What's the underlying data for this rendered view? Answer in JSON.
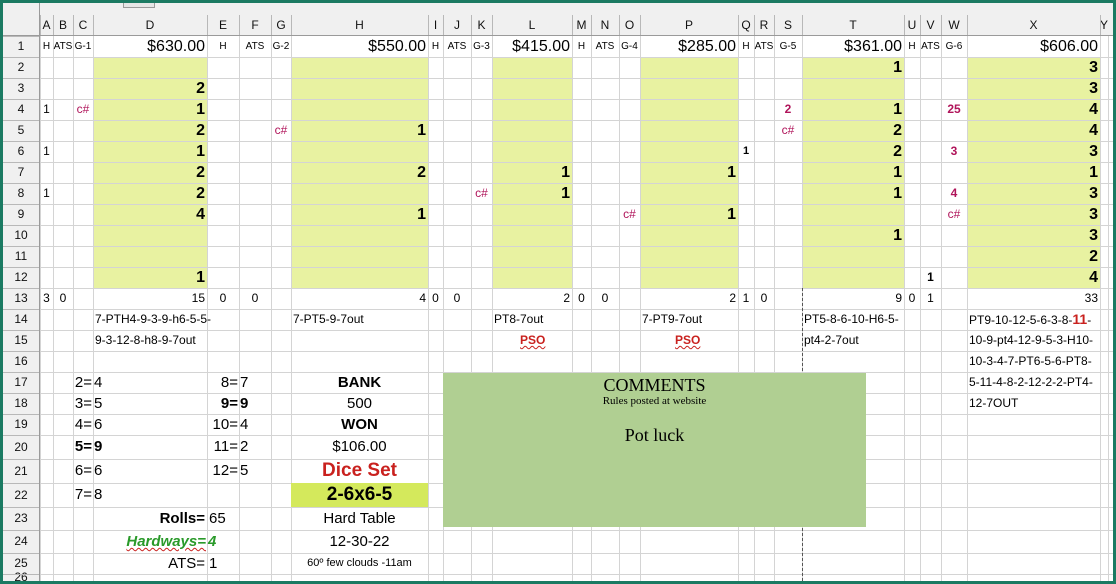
{
  "columns": [
    "A",
    "B",
    "C",
    "D",
    "E",
    "F",
    "G",
    "H",
    "I",
    "J",
    "K",
    "L",
    "M",
    "N",
    "O",
    "P",
    "Q",
    "R",
    "S",
    "T",
    "U",
    "V",
    "W",
    "X",
    "Y"
  ],
  "rows": [
    "1",
    "2",
    "3",
    "4",
    "5",
    "6",
    "7",
    "8",
    "9",
    "10",
    "11",
    "12",
    "13",
    "14",
    "15",
    "16",
    "17",
    "18",
    "19",
    "20",
    "21",
    "22",
    "23",
    "24",
    "25",
    "26"
  ],
  "colors": {
    "fill_green": "#e8f2a1",
    "comments_bg": "#b0cf92",
    "accent_red": "#c9211e",
    "crimson": "#b0145a",
    "green_text": "#2a9a2a",
    "dice_bg": "#d4e95c",
    "frame": "#1b7a62"
  },
  "cells": [
    {
      "text": "H",
      "col": "A",
      "row": 1,
      "size": 10,
      "align": "c"
    },
    {
      "text": "ATS",
      "col": "B",
      "row": 1,
      "size": 10,
      "align": "c"
    },
    {
      "text": "G-1",
      "col": "C",
      "row": 1,
      "size": 10,
      "align": "c"
    },
    {
      "text": "$630.00",
      "col": "D",
      "row": 1,
      "size": 16,
      "align": "r"
    },
    {
      "text": "H",
      "col": "E",
      "row": 1,
      "size": 10,
      "align": "c"
    },
    {
      "text": "ATS",
      "col": "F",
      "row": 1,
      "size": 10,
      "align": "c"
    },
    {
      "text": "G-2",
      "col": "G",
      "row": 1,
      "size": 10,
      "align": "c"
    },
    {
      "text": "$550.00",
      "col": "H",
      "row": 1,
      "size": 16,
      "align": "r"
    },
    {
      "text": "H",
      "col": "I",
      "row": 1,
      "size": 10,
      "align": "c"
    },
    {
      "text": "ATS",
      "col": "J",
      "row": 1,
      "size": 10,
      "align": "c"
    },
    {
      "text": "G-3",
      "col": "K",
      "row": 1,
      "size": 10,
      "align": "c"
    },
    {
      "text": "$415.00",
      "col": "L",
      "row": 1,
      "size": 16,
      "align": "r"
    },
    {
      "text": "H",
      "col": "M",
      "row": 1,
      "size": 10,
      "align": "c"
    },
    {
      "text": "ATS",
      "col": "N",
      "row": 1,
      "size": 10,
      "align": "c"
    },
    {
      "text": "G-4",
      "col": "O",
      "row": 1,
      "size": 10,
      "align": "c"
    },
    {
      "text": "$285.00",
      "col": "P",
      "row": 1,
      "size": 16,
      "align": "r"
    },
    {
      "text": "H",
      "col": "Q",
      "row": 1,
      "size": 10,
      "align": "c"
    },
    {
      "text": "ATS",
      "col": "R",
      "row": 1,
      "size": 10,
      "align": "c"
    },
    {
      "text": "G-5",
      "col": "S",
      "row": 1,
      "size": 10,
      "align": "c"
    },
    {
      "text": "$361.00",
      "col": "T",
      "row": 1,
      "size": 16,
      "align": "r"
    },
    {
      "text": "H",
      "col": "U",
      "row": 1,
      "size": 10,
      "align": "c"
    },
    {
      "text": "ATS",
      "col": "V",
      "row": 1,
      "size": 10,
      "align": "c"
    },
    {
      "text": "G-6",
      "col": "W",
      "row": 1,
      "size": 10,
      "align": "c"
    },
    {
      "text": "$606.00",
      "col": "X",
      "row": 1,
      "size": 16,
      "align": "r"
    },
    {
      "text": "2",
      "col": "D",
      "row": 3,
      "size": 16,
      "bold": true,
      "align": "r"
    },
    {
      "text": "1",
      "col": "D",
      "row": 4,
      "size": 16,
      "bold": true,
      "align": "r"
    },
    {
      "text": "2",
      "col": "D",
      "row": 5,
      "size": 16,
      "bold": true,
      "align": "r"
    },
    {
      "text": "1",
      "col": "D",
      "row": 6,
      "size": 16,
      "bold": true,
      "align": "r"
    },
    {
      "text": "2",
      "col": "D",
      "row": 7,
      "size": 16,
      "bold": true,
      "align": "r"
    },
    {
      "text": "2",
      "col": "D",
      "row": 8,
      "size": 16,
      "bold": true,
      "align": "r"
    },
    {
      "text": "4",
      "col": "D",
      "row": 9,
      "size": 16,
      "bold": true,
      "align": "r"
    },
    {
      "text": "1",
      "col": "D",
      "row": 12,
      "size": 16,
      "bold": true,
      "align": "r"
    },
    {
      "text": "1",
      "col": "A",
      "row": 4,
      "size": 12,
      "align": "c"
    },
    {
      "text": "1",
      "col": "A",
      "row": 6,
      "size": 12,
      "align": "c"
    },
    {
      "text": "1",
      "col": "A",
      "row": 8,
      "size": 12,
      "align": "c"
    },
    {
      "text": "c#",
      "col": "C",
      "row": 4,
      "size": 12,
      "color": "crimson",
      "align": "c"
    },
    {
      "text": "c#",
      "col": "G",
      "row": 5,
      "size": 12,
      "color": "crimson",
      "align": "c"
    },
    {
      "text": "1",
      "col": "H",
      "row": 5,
      "size": 16,
      "bold": true,
      "align": "r"
    },
    {
      "text": "2",
      "col": "H",
      "row": 7,
      "size": 16,
      "bold": true,
      "align": "r"
    },
    {
      "text": "1",
      "col": "H",
      "row": 9,
      "size": 16,
      "bold": true,
      "align": "r"
    },
    {
      "text": "c#",
      "col": "K",
      "row": 8,
      "size": 12,
      "color": "crimson",
      "align": "c"
    },
    {
      "text": "1",
      "col": "L",
      "row": 7,
      "size": 16,
      "bold": true,
      "align": "r"
    },
    {
      "text": "1",
      "col": "L",
      "row": 8,
      "size": 16,
      "bold": true,
      "align": "r"
    },
    {
      "text": "c#",
      "col": "O",
      "row": 9,
      "size": 12,
      "color": "crimson",
      "align": "c"
    },
    {
      "text": "1",
      "col": "P",
      "row": 7,
      "size": 16,
      "bold": true,
      "align": "r"
    },
    {
      "text": "1",
      "col": "P",
      "row": 9,
      "size": 16,
      "bold": true,
      "align": "r"
    },
    {
      "text": "1",
      "col": "Q",
      "row": 6,
      "size": 11,
      "bold": true,
      "align": "c"
    },
    {
      "text": "2",
      "col": "S",
      "row": 4,
      "size": 12,
      "bold": true,
      "color": "crimson",
      "align": "c"
    },
    {
      "text": "c#",
      "col": "S",
      "row": 5,
      "size": 12,
      "color": "crimson",
      "align": "c"
    },
    {
      "text": "1",
      "col": "T",
      "row": 2,
      "size": 16,
      "bold": true,
      "align": "r"
    },
    {
      "text": "1",
      "col": "T",
      "row": 4,
      "size": 16,
      "bold": true,
      "align": "r"
    },
    {
      "text": "2",
      "col": "T",
      "row": 5,
      "size": 16,
      "bold": true,
      "align": "r"
    },
    {
      "text": "2",
      "col": "T",
      "row": 6,
      "size": 16,
      "bold": true,
      "align": "r"
    },
    {
      "text": "1",
      "col": "T",
      "row": 7,
      "size": 16,
      "bold": true,
      "align": "r"
    },
    {
      "text": "1",
      "col": "T",
      "row": 8,
      "size": 16,
      "bold": true,
      "align": "r"
    },
    {
      "text": "1",
      "col": "T",
      "row": 10,
      "size": 16,
      "bold": true,
      "align": "r"
    },
    {
      "text": "25",
      "col": "W",
      "row": 4,
      "size": 12,
      "bold": true,
      "color": "crimson",
      "align": "c"
    },
    {
      "text": "3",
      "col": "W",
      "row": 6,
      "size": 12,
      "bold": true,
      "color": "crimson",
      "align": "c"
    },
    {
      "text": "4",
      "col": "W",
      "row": 8,
      "size": 12,
      "bold": true,
      "color": "crimson",
      "align": "c"
    },
    {
      "text": "c#",
      "col": "W",
      "row": 9,
      "size": 12,
      "color": "crimson",
      "align": "c"
    },
    {
      "text": "1",
      "col": "V",
      "row": 12,
      "size": 12,
      "bold": true,
      "align": "c"
    },
    {
      "text": "3",
      "col": "X",
      "row": 2,
      "size": 16,
      "bold": true,
      "align": "r"
    },
    {
      "text": "3",
      "col": "X",
      "row": 3,
      "size": 16,
      "bold": true,
      "align": "r"
    },
    {
      "text": "4",
      "col": "X",
      "row": 4,
      "size": 16,
      "bold": true,
      "align": "r"
    },
    {
      "text": "4",
      "col": "X",
      "row": 5,
      "size": 16,
      "bold": true,
      "align": "r"
    },
    {
      "text": "3",
      "col": "X",
      "row": 6,
      "size": 16,
      "bold": true,
      "align": "r"
    },
    {
      "text": "1",
      "col": "X",
      "row": 7,
      "size": 16,
      "bold": true,
      "align": "r"
    },
    {
      "text": "3",
      "col": "X",
      "row": 8,
      "size": 16,
      "bold": true,
      "align": "r"
    },
    {
      "text": "3",
      "col": "X",
      "row": 9,
      "size": 16,
      "bold": true,
      "align": "r"
    },
    {
      "text": "3",
      "col": "X",
      "row": 10,
      "size": 16,
      "bold": true,
      "align": "r"
    },
    {
      "text": "2",
      "col": "X",
      "row": 11,
      "size": 16,
      "bold": true,
      "align": "r"
    },
    {
      "text": "4",
      "col": "X",
      "row": 12,
      "size": 16,
      "bold": true,
      "align": "r"
    },
    {
      "text": "3",
      "col": "A",
      "row": 13,
      "size": 12,
      "align": "c"
    },
    {
      "text": "0",
      "col": "B",
      "row": 13,
      "size": 12,
      "align": "c"
    },
    {
      "text": "15",
      "col": "D",
      "row": 13,
      "size": 12,
      "align": "r"
    },
    {
      "text": "0",
      "col": "E",
      "row": 13,
      "size": 12,
      "align": "c"
    },
    {
      "text": "0",
      "col": "F",
      "row": 13,
      "size": 12,
      "align": "c"
    },
    {
      "text": "4",
      "col": "H",
      "row": 13,
      "size": 12,
      "align": "r"
    },
    {
      "text": "0",
      "col": "I",
      "row": 13,
      "size": 12,
      "align": "c"
    },
    {
      "text": "0",
      "col": "J",
      "row": 13,
      "size": 12,
      "align": "c"
    },
    {
      "text": "2",
      "col": "L",
      "row": 13,
      "size": 12,
      "align": "r"
    },
    {
      "text": "0",
      "col": "M",
      "row": 13,
      "size": 12,
      "align": "c"
    },
    {
      "text": "0",
      "col": "N",
      "row": 13,
      "size": 12,
      "align": "c"
    },
    {
      "text": "2",
      "col": "P",
      "row": 13,
      "size": 12,
      "align": "r"
    },
    {
      "text": "1",
      "col": "Q",
      "row": 13,
      "size": 12,
      "align": "c"
    },
    {
      "text": "0",
      "col": "R",
      "row": 13,
      "size": 12,
      "align": "c"
    },
    {
      "text": "9",
      "col": "T",
      "row": 13,
      "size": 12,
      "align": "r"
    },
    {
      "text": "0",
      "col": "U",
      "row": 13,
      "size": 12,
      "align": "c"
    },
    {
      "text": "1",
      "col": "V",
      "row": 13,
      "size": 12,
      "align": "c"
    },
    {
      "text": "33",
      "col": "X",
      "row": 13,
      "size": 12,
      "align": "r"
    },
    {
      "text": "7-PTH4-9-3-9-h6-5-5-",
      "col": "D",
      "row": 14,
      "size": 12,
      "align": "l"
    },
    {
      "text": "9-3-12-8-h8-9-7out",
      "col": "D",
      "row": 15,
      "size": 12,
      "align": "l"
    },
    {
      "text": "7-PT5-9-7out",
      "col": "H",
      "row": 14,
      "size": 12,
      "align": "l"
    },
    {
      "text": "PT8-7out",
      "col": "L",
      "row": 14,
      "size": 12,
      "align": "l"
    },
    {
      "text": "PSO",
      "col": "L",
      "row": 15,
      "size": 12,
      "bold": true,
      "color": "accent_red",
      "underline": true,
      "align": "l",
      "offset": 26
    },
    {
      "text": "7-PT9-7out",
      "col": "P",
      "row": 14,
      "size": 12,
      "align": "l"
    },
    {
      "text": "PSO",
      "col": "P",
      "row": 15,
      "size": 12,
      "bold": true,
      "color": "accent_red",
      "underline": true,
      "align": "l",
      "offset": 33
    },
    {
      "text": "PT5-8-6-10-H6-5-",
      "col": "T",
      "row": 14,
      "size": 12,
      "align": "l"
    },
    {
      "text": "pt4-2-7out",
      "col": "T",
      "row": 15,
      "size": 12,
      "align": "l"
    },
    {
      "text": "10-9-pt4-12-9-5-3-H10-",
      "col": "X",
      "row": 15,
      "size": 12,
      "align": "l"
    },
    {
      "text": "10-3-4-7-PT6-5-6-PT8-",
      "col": "X",
      "row": 16,
      "size": 12,
      "align": "l"
    },
    {
      "text": "5-11-4-8-2-12-2-2-PT4-",
      "col": "X",
      "row": 17,
      "size": 12,
      "align": "l"
    },
    {
      "text": "12-7OUT",
      "col": "X",
      "row": 18,
      "size": 12,
      "align": "l"
    },
    {
      "text": "BANK",
      "col": "H",
      "row": 17,
      "size": 15,
      "bold": true,
      "align": "c"
    },
    {
      "text": "500",
      "col": "H",
      "row": 18,
      "size": 15,
      "align": "c"
    },
    {
      "text": "WON",
      "col": "H",
      "row": 19,
      "size": 15,
      "bold": true,
      "align": "c"
    },
    {
      "text": "$106.00",
      "col": "H",
      "row": 20,
      "size": 15,
      "align": "c"
    },
    {
      "text": "Dice Set",
      "col": "H",
      "row": 21,
      "size": 19,
      "bold": true,
      "color": "accent_red",
      "align": "c"
    },
    {
      "text": "Hard Table",
      "col": "H",
      "row": 23,
      "size": 15,
      "align": "c"
    },
    {
      "text": "12-30-22",
      "col": "H",
      "row": 24,
      "size": 15,
      "align": "c"
    },
    {
      "text": "60º few clouds -11am",
      "col": "H",
      "row": 25,
      "size": 11,
      "align": "c"
    },
    {
      "text": "Rolls=",
      "col": "D",
      "row": 23,
      "size": 15,
      "bold": true,
      "align": "r"
    },
    {
      "text": "65",
      "col": "E",
      "row": 23,
      "size": 15,
      "align": "l"
    },
    {
      "text": "ATS=",
      "col": "D",
      "row": 25,
      "size": 15,
      "align": "r"
    },
    {
      "text": "1",
      "col": "E",
      "row": 25,
      "size": 15,
      "align": "l"
    }
  ],
  "pt9_line": {
    "prefix": "PT9-10-12-5-6-3-8-",
    "highlight": "11",
    "suffix": "-"
  },
  "hardways": {
    "label": "Hardways=",
    "value": "4"
  },
  "dice_set_value": "2-6x6-5",
  "number_table_left": [
    {
      "num": "2=",
      "count": "4",
      "bold": false
    },
    {
      "num": "3=",
      "count": "5",
      "bold": false
    },
    {
      "num": "4=",
      "count": "6",
      "bold": false
    },
    {
      "num": "5=",
      "count": "9",
      "bold": true
    },
    {
      "num": "6=",
      "count": "6",
      "bold": false
    },
    {
      "num": "7=",
      "count": "8",
      "bold": false
    }
  ],
  "number_table_right": [
    {
      "num": "8=",
      "count": "7",
      "bold": false
    },
    {
      "num": "9=",
      "count": "9",
      "bold": true
    },
    {
      "num": "10=",
      "count": "4",
      "bold": false
    },
    {
      "num": "11=",
      "count": "2",
      "bold": false
    },
    {
      "num": "12=",
      "count": "5",
      "bold": false
    }
  ],
  "comments": {
    "title": "COMMENTS",
    "subtitle": "Rules posted at website",
    "body": "Pot luck"
  }
}
